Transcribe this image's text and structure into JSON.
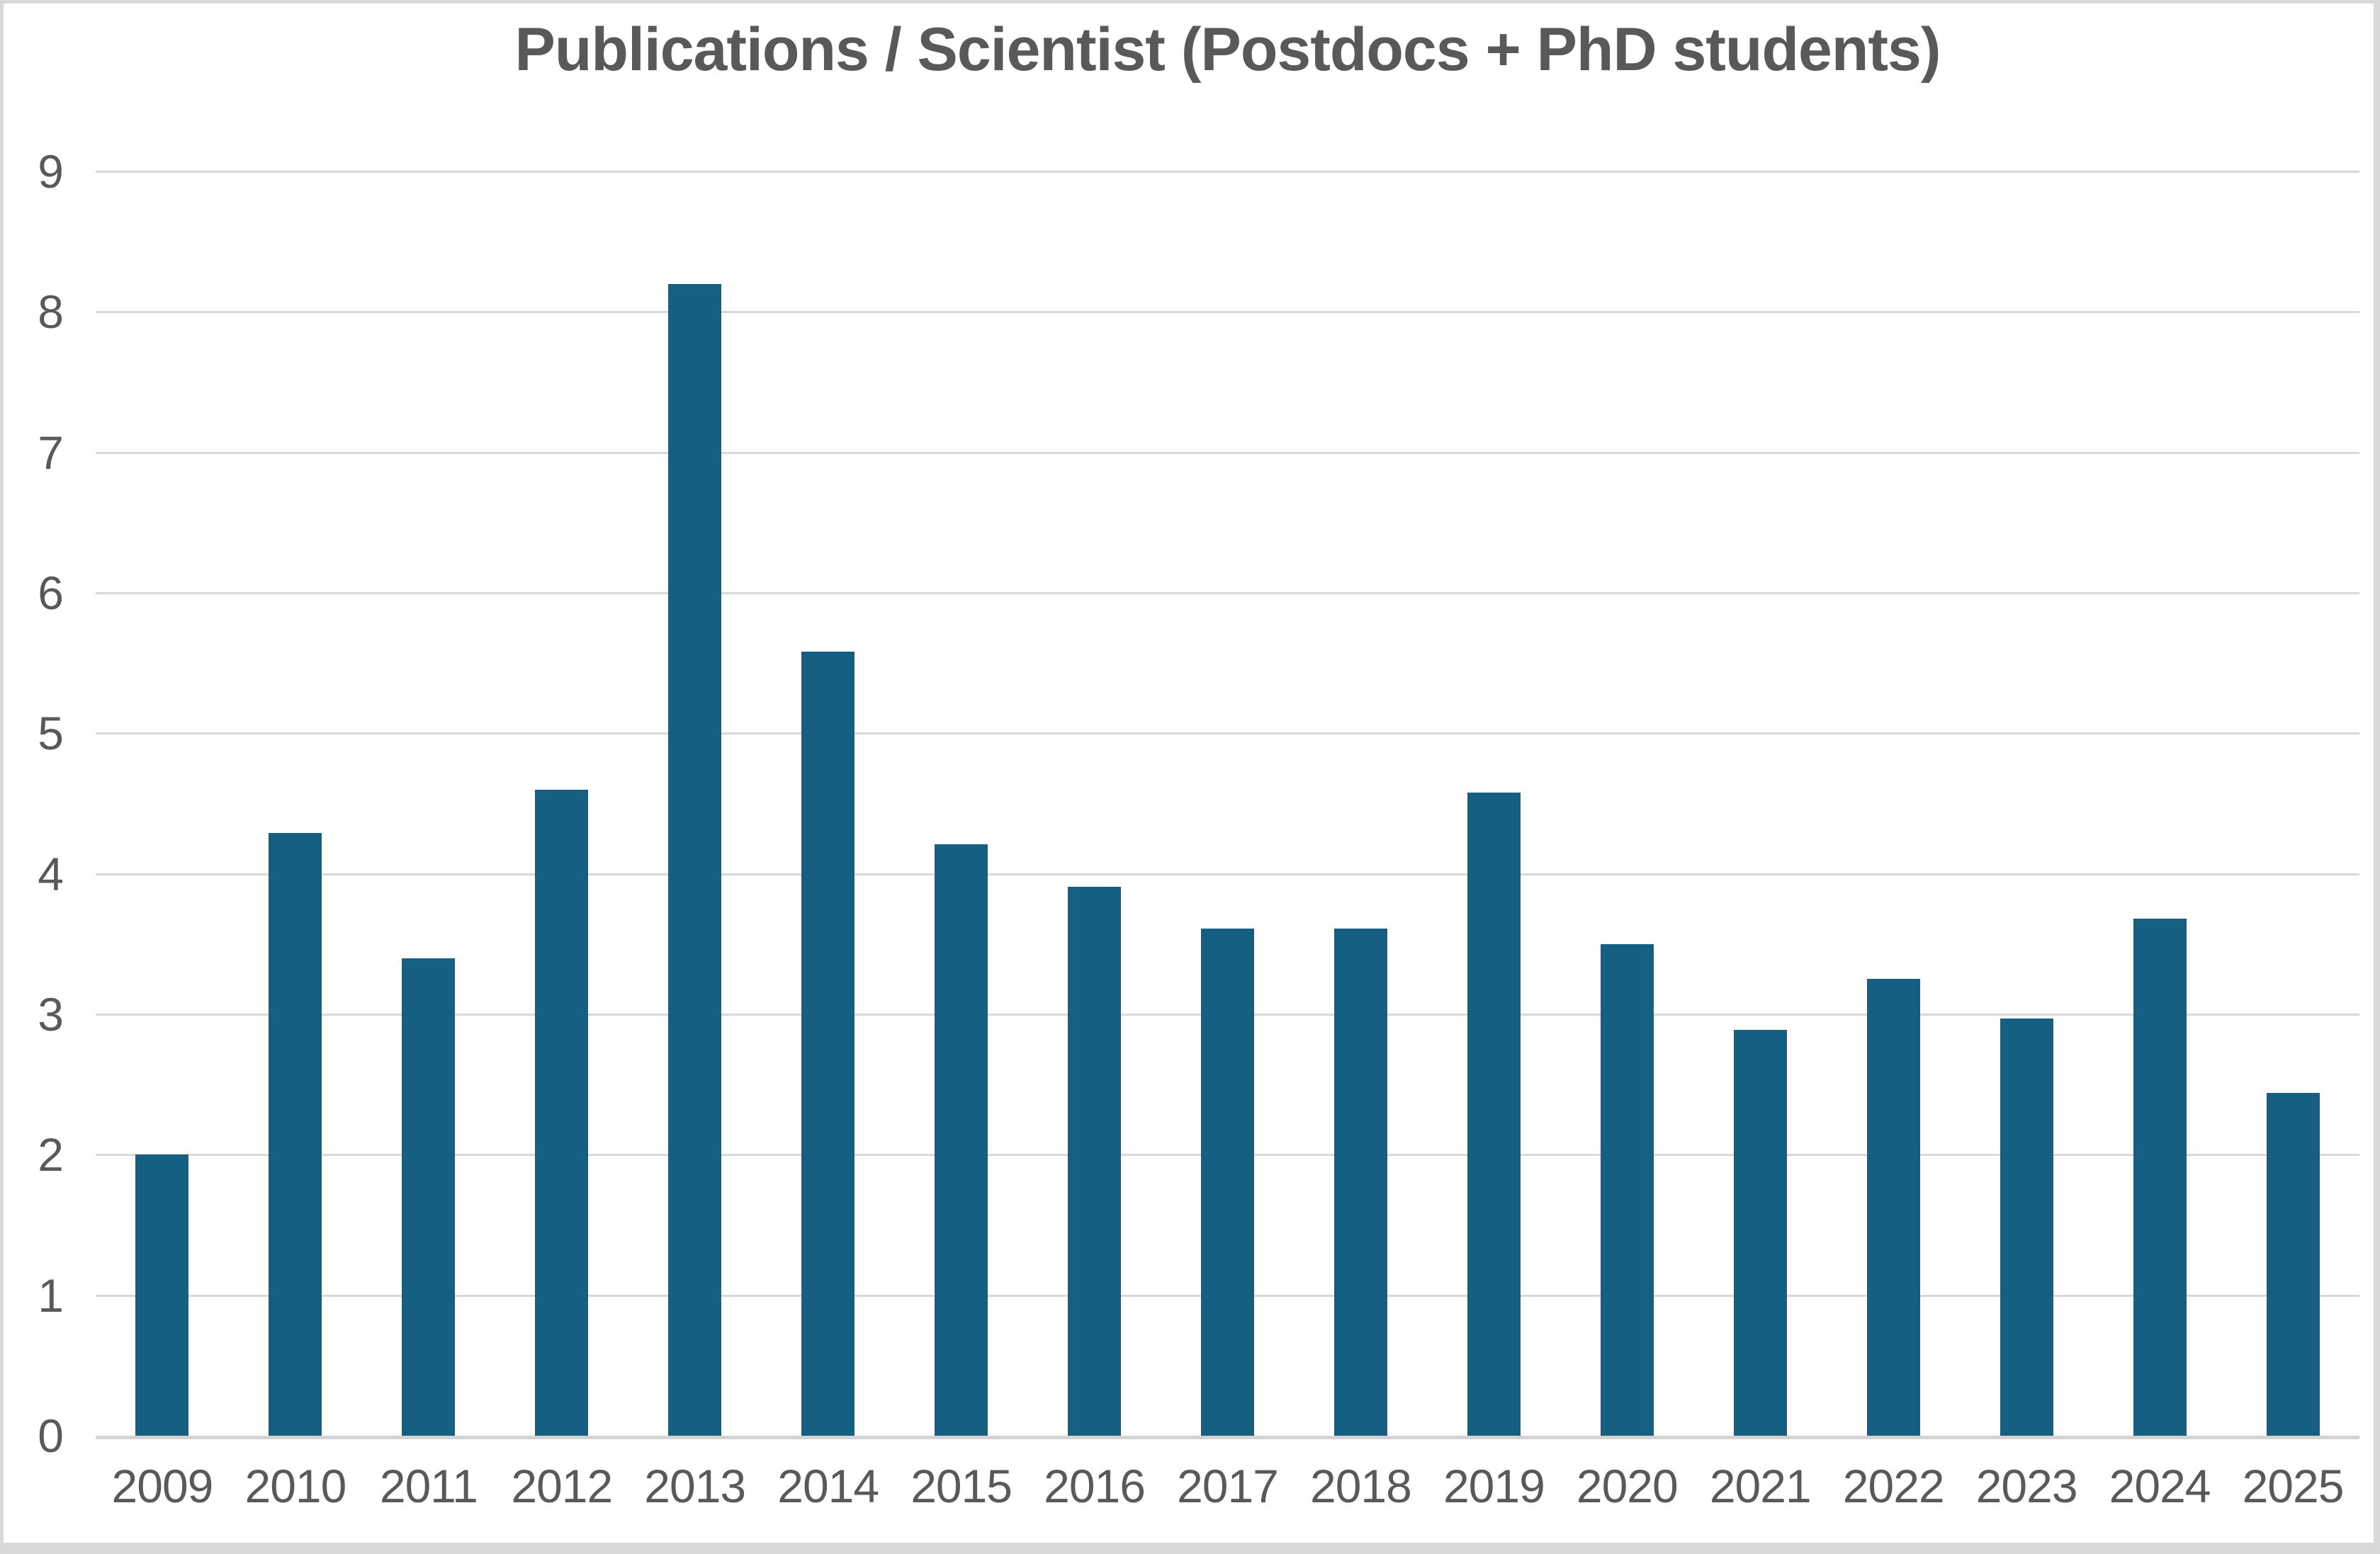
{
  "chart_data": {
    "type": "bar",
    "title": "Publications / Scientist (Postdocs + PhD students)",
    "categories": [
      "2009",
      "2010",
      "2011",
      "2012",
      "2013",
      "2014",
      "2015",
      "2016",
      "2017",
      "2018",
      "2019",
      "2020",
      "2021",
      "2022",
      "2023",
      "2024",
      "2025"
    ],
    "values": [
      2.0,
      4.29,
      3.4,
      4.6,
      8.2,
      5.58,
      4.21,
      3.91,
      3.61,
      3.61,
      4.58,
      3.5,
      2.89,
      3.25,
      2.97,
      3.68,
      2.44
    ],
    "xlabel": "",
    "ylabel": "",
    "y_ticks": [
      0,
      1,
      2,
      3,
      4,
      5,
      6,
      7,
      8,
      9
    ],
    "ylim": [
      0,
      9
    ],
    "grid": true,
    "legend": "none",
    "colors": {
      "bar": "#156082",
      "gridline": "#d9d9d9",
      "axis_line": "#d3d3d3",
      "tick_label": "#595959",
      "title": "#595959",
      "frame_border": "#d9d9d9"
    }
  }
}
